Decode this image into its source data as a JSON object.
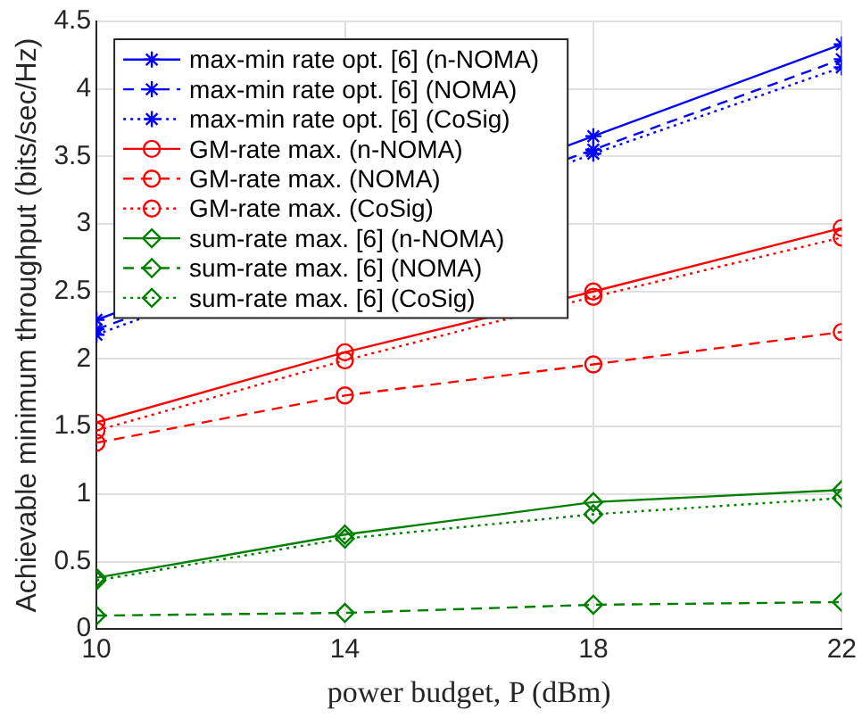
{
  "chart_data": {
    "type": "line",
    "xlabel": "power budget, P (dBm)",
    "ylabel": "Achievable minimum throughput (bits/sec/Hz)",
    "x": [
      10,
      14,
      18,
      22
    ],
    "xlim": [
      10,
      22
    ],
    "xticks": [
      10,
      14,
      18,
      22
    ],
    "ylim": [
      0,
      4.5
    ],
    "yticks": [
      0,
      0.5,
      1,
      1.5,
      2,
      2.5,
      3,
      3.5,
      4,
      4.5
    ],
    "grid": true,
    "legend": "top left",
    "series": [
      {
        "name": "max-min rate opt. [6] (n-NOMA)",
        "color": "#0000ff",
        "marker": "cross",
        "line_style": "solid",
        "values": [
          2.29,
          null,
          3.65,
          4.33
        ]
      },
      {
        "name": "max-min rate opt. [6] (NOMA)",
        "color": "#0000ff",
        "marker": "cross",
        "line_style": "dashed",
        "values": [
          2.22,
          null,
          3.55,
          4.22
        ]
      },
      {
        "name": "max-min rate opt. [6] (CoSig)",
        "color": "#0000ff",
        "marker": "cross",
        "line_style": "dotted",
        "values": [
          2.18,
          null,
          3.52,
          4.16
        ]
      },
      {
        "name": "GM-rate max. (n-NOMA)",
        "color": "#ff0000",
        "marker": "circle",
        "line_style": "solid",
        "values": [
          1.53,
          2.05,
          2.5,
          2.97
        ]
      },
      {
        "name": "GM-rate max. (NOMA)",
        "color": "#ff0000",
        "marker": "circle",
        "line_style": "dashed",
        "values": [
          1.38,
          1.73,
          1.96,
          2.2
        ]
      },
      {
        "name": "GM-rate max. (CoSig)",
        "color": "#ff0000",
        "marker": "circle",
        "line_style": "dotted",
        "values": [
          1.47,
          1.99,
          2.46,
          2.9
        ]
      },
      {
        "name": "sum-rate max. [6] (n-NOMA)",
        "color": "#008000",
        "marker": "diamond",
        "line_style": "solid",
        "values": [
          0.38,
          0.7,
          0.94,
          1.03
        ]
      },
      {
        "name": "sum-rate max. [6] (NOMA)",
        "color": "#008000",
        "marker": "diamond",
        "line_style": "dashed",
        "values": [
          0.1,
          0.12,
          0.18,
          0.2
        ]
      },
      {
        "name": "sum-rate max. [6] (CoSig)",
        "color": "#008000",
        "marker": "diamond",
        "line_style": "dotted",
        "values": [
          0.36,
          0.67,
          0.85,
          0.97
        ]
      }
    ]
  }
}
